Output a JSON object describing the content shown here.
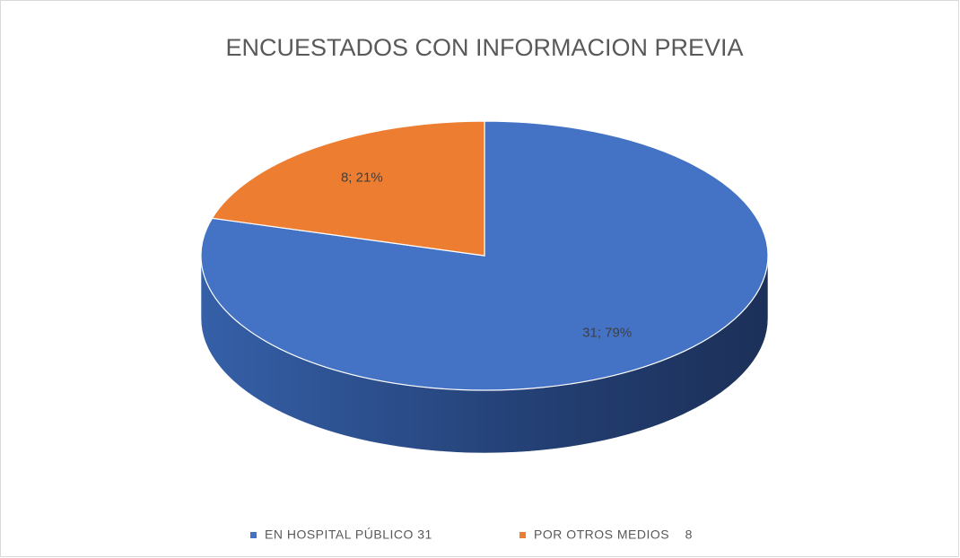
{
  "chart_data": {
    "type": "pie",
    "title": "ENCUESTADOS CON INFORMACION PREVIA",
    "series": [
      {
        "name": "EN HOSPITAL PÚBLICO 31",
        "color": "#4472c4",
        "values": [
          31
        ],
        "value_labels": [
          "31; 79%"
        ]
      },
      {
        "name": "POR OTROS MEDIOS    8",
        "color": "#ed7d31",
        "values": [
          8
        ],
        "value_labels": [
          "8; 21%"
        ]
      }
    ],
    "legend": "bottom"
  }
}
